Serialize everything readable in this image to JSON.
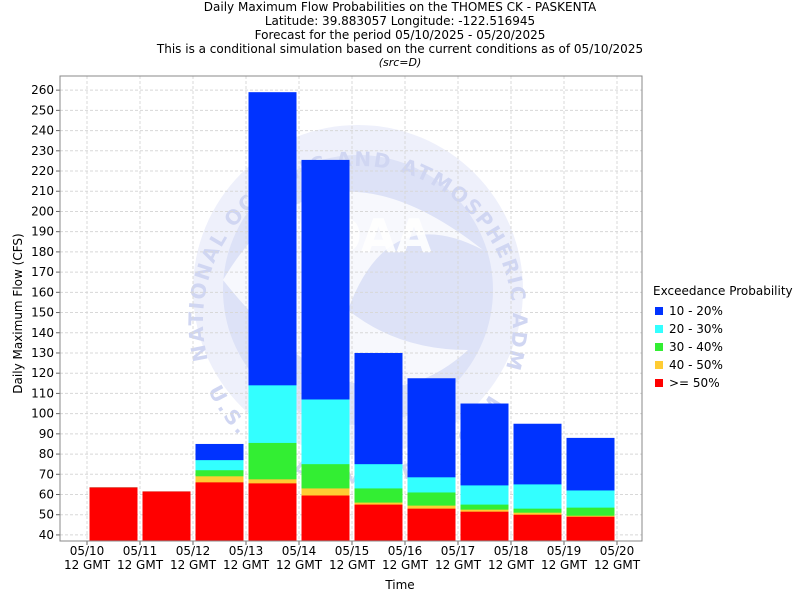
{
  "titles": [
    "Daily Maximum Flow Probabilities on the THOMES CK - PASKENTA",
    "Latitude: 39.883057 Longitude: -122.516945",
    "Forecast for the period 05/10/2025 - 05/20/2025",
    "This is a conditional simulation based on the current conditions as of 05/10/2025"
  ],
  "subtitle": "(src=D)",
  "watermark": {
    "text_top": "NATIONAL OCEANIC AND ATMOSPHERIC ADMINISTRATION",
    "text_bottom": "U.S. DEPARTMENT OF COMMERCE",
    "center_text": "NOAA"
  },
  "legend": {
    "title": "Exceedance Probability",
    "items": [
      {
        "label": "10 - 20%",
        "color": "#0033ff"
      },
      {
        "label": "20 - 30%",
        "color": "#33ffff"
      },
      {
        "label": "30 - 40%",
        "color": "#33ee33"
      },
      {
        "label": "40 - 50%",
        "color": "#ffcc33"
      },
      {
        "label": ">= 50%",
        "color": "#ff0000"
      }
    ]
  },
  "chart_data": {
    "type": "bar",
    "stacked": true,
    "xlabel": "Time",
    "ylabel": "Daily Maximum Flow (CFS)",
    "ylim": [
      37,
      267
    ],
    "yticks": [
      40,
      50,
      60,
      70,
      80,
      90,
      100,
      110,
      120,
      130,
      140,
      150,
      160,
      170,
      180,
      190,
      200,
      210,
      220,
      230,
      240,
      250,
      260
    ],
    "xticks": [
      {
        "date": "05/10",
        "time": "12 GMT"
      },
      {
        "date": "05/11",
        "time": "12 GMT"
      },
      {
        "date": "05/12",
        "time": "12 GMT"
      },
      {
        "date": "05/13",
        "time": "12 GMT"
      },
      {
        "date": "05/14",
        "time": "12 GMT"
      },
      {
        "date": "05/15",
        "time": "12 GMT"
      },
      {
        "date": "05/16",
        "time": "12 GMT"
      },
      {
        "date": "05/17",
        "time": "12 GMT"
      },
      {
        "date": "05/18",
        "time": "12 GMT"
      },
      {
        "date": "05/19",
        "time": "12 GMT"
      },
      {
        "date": "05/20",
        "time": "12 GMT"
      }
    ],
    "grid": true,
    "bars": [
      {
        "day": "05/11",
        "ge50": 63.5,
        "p40_50": 63.5,
        "p30_40": 63.5,
        "p20_30": 63.5,
        "p10_20": 63.5
      },
      {
        "day": "05/12",
        "ge50": 61.5,
        "p40_50": 61.5,
        "p30_40": 61.5,
        "p20_30": 61.5,
        "p10_20": 61.5
      },
      {
        "day": "05/13",
        "ge50": 66,
        "p40_50": 69,
        "p30_40": 72,
        "p20_30": 77,
        "p10_20": 85
      },
      {
        "day": "05/14",
        "ge50": 65.5,
        "p40_50": 67.5,
        "p30_40": 85.5,
        "p20_30": 114,
        "p10_20": 259
      },
      {
        "day": "05/15",
        "ge50": 59.5,
        "p40_50": 63,
        "p30_40": 75,
        "p20_30": 107,
        "p10_20": 225.5
      },
      {
        "day": "05/16",
        "ge50": 55,
        "p40_50": 56,
        "p30_40": 63,
        "p20_30": 75,
        "p10_20": 130
      },
      {
        "day": "05/17",
        "ge50": 53,
        "p40_50": 54.5,
        "p30_40": 61,
        "p20_30": 68.5,
        "p10_20": 117.5
      },
      {
        "day": "05/18",
        "ge50": 51.5,
        "p40_50": 52.5,
        "p30_40": 55,
        "p20_30": 64.5,
        "p10_20": 105
      },
      {
        "day": "05/19",
        "ge50": 50,
        "p40_50": 51,
        "p30_40": 53,
        "p20_30": 65,
        "p10_20": 95
      },
      {
        "day": "05/20",
        "ge50": 49,
        "p40_50": 49.5,
        "p30_40": 53.5,
        "p20_30": 62,
        "p10_20": 88
      }
    ]
  }
}
